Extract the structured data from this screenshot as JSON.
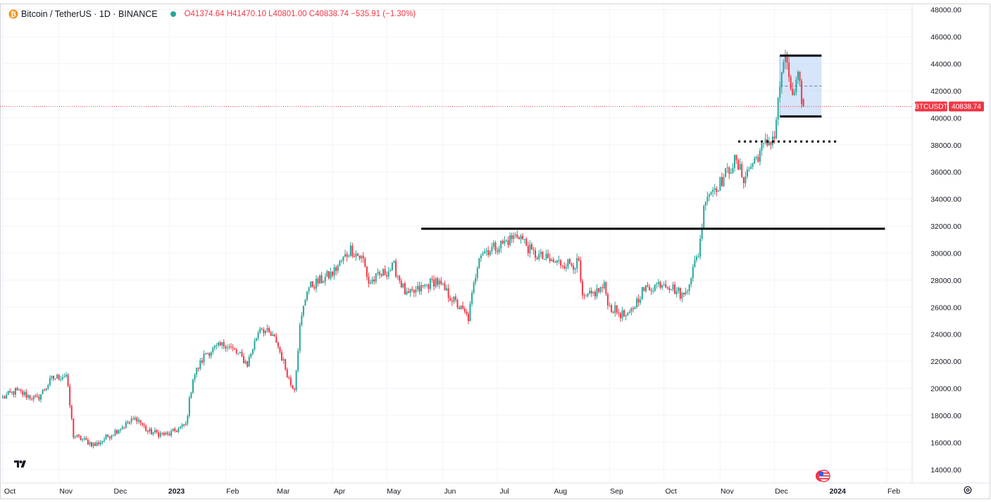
{
  "header": {
    "title": "Bitcoin / TetherUS · 1D · BINANCE",
    "ohlc": "O41374.64 H41470.10 L40801.00 C40838.74 −535.91 (−1.30%)"
  },
  "price_label": {
    "symbol": "BTCUSDT",
    "value": "40838.74"
  },
  "colors": {
    "up": "#26a69a",
    "down": "#f23645",
    "grid": "#f0f3fa",
    "box": "#bbd3f5"
  },
  "icons": [
    "tradingview-logo-icon",
    "flag-icon",
    "gear-icon",
    "symbol-icon"
  ],
  "chart_data": {
    "type": "candlestick",
    "title": "Bitcoin / TetherUS · 1D · BINANCE",
    "y_ticks": [
      "48000.00",
      "46000.00",
      "44000.00",
      "42000.00",
      "40000.00",
      "38000.00",
      "36000.00",
      "34000.00",
      "32000.00",
      "30000.00",
      "28000.00",
      "26000.00",
      "24000.00",
      "22000.00",
      "20000.00",
      "18000.00",
      "16000.00",
      "14000.00"
    ],
    "x_ticks": [
      "Oct",
      "Nov",
      "Dec",
      "2023",
      "Feb",
      "Mar",
      "Apr",
      "May",
      "Jun",
      "Jul",
      "Aug",
      "Sep",
      "Oct",
      "Nov",
      "Dec",
      "2024",
      "Feb"
    ],
    "x_range": [
      "2022-10-01",
      "2024-02-15"
    ],
    "ylim": [
      13000,
      48400
    ],
    "anchors": [
      [
        "2022-10-01",
        19300
      ],
      [
        "2022-10-08",
        19800
      ],
      [
        "2022-10-20",
        19200
      ],
      [
        "2022-10-28",
        20700
      ],
      [
        "2022-11-05",
        21000
      ],
      [
        "2022-11-09",
        16500
      ],
      [
        "2022-11-21",
        15800
      ],
      [
        "2022-12-05",
        17100
      ],
      [
        "2022-12-14",
        17800
      ],
      [
        "2022-12-20",
        16800
      ],
      [
        "2022-12-31",
        16550
      ],
      [
        "2023-01-10",
        17300
      ],
      [
        "2023-01-14",
        20800
      ],
      [
        "2023-01-21",
        22600
      ],
      [
        "2023-02-01",
        23300
      ],
      [
        "2023-02-09",
        22400
      ],
      [
        "2023-02-13",
        21800
      ],
      [
        "2023-02-20",
        24600
      ],
      [
        "2023-03-01",
        23500
      ],
      [
        "2023-03-09",
        20300
      ],
      [
        "2023-03-11",
        20100
      ],
      [
        "2023-03-14",
        24500
      ],
      [
        "2023-03-18",
        27400
      ],
      [
        "2023-04-01",
        28500
      ],
      [
        "2023-04-11",
        30300
      ],
      [
        "2023-04-18",
        29500
      ],
      [
        "2023-04-21",
        27800
      ],
      [
        "2023-05-05",
        29000
      ],
      [
        "2023-05-12",
        26800
      ],
      [
        "2023-05-28",
        28000
      ],
      [
        "2023-06-10",
        26000
      ],
      [
        "2023-06-15",
        25200
      ],
      [
        "2023-06-21",
        30000
      ],
      [
        "2023-07-01",
        30500
      ],
      [
        "2023-07-13",
        31400
      ],
      [
        "2023-07-20",
        30000
      ],
      [
        "2023-08-01",
        29300
      ],
      [
        "2023-08-15",
        29200
      ],
      [
        "2023-08-17",
        26500
      ],
      [
        "2023-08-29",
        27500
      ],
      [
        "2023-09-01",
        26000
      ],
      [
        "2023-09-11",
        25200
      ],
      [
        "2023-09-19",
        27200
      ],
      [
        "2023-10-01",
        27900
      ],
      [
        "2023-10-12",
        26800
      ],
      [
        "2023-10-20",
        30000
      ],
      [
        "2023-10-24",
        34300
      ],
      [
        "2023-11-01",
        35200
      ],
      [
        "2023-11-09",
        36800
      ],
      [
        "2023-11-14",
        35600
      ],
      [
        "2023-11-24",
        37700
      ],
      [
        "2023-12-01",
        38700
      ],
      [
        "2023-12-05",
        43500
      ],
      [
        "2023-12-08",
        44100
      ],
      [
        "2023-12-11",
        41300
      ],
      [
        "2023-12-14",
        42800
      ],
      [
        "2023-12-17",
        40838
      ]
    ],
    "last": {
      "open": 41374.64,
      "high": 41470.1,
      "low": 40801.0,
      "close": 40838.74,
      "change": -535.91,
      "change_pct": -1.3
    },
    "annotations": {
      "resistance_line": {
        "price": 31800,
        "from": "2023-05-20",
        "to": "2024-01-31"
      },
      "dotted_line": {
        "price": 38250,
        "from": "2023-11-11",
        "to": "2024-01-06"
      },
      "range_box": {
        "top": 44600,
        "bottom": 40100,
        "mid": 42350,
        "from": "2023-12-04",
        "to": "2023-12-27"
      }
    }
  }
}
